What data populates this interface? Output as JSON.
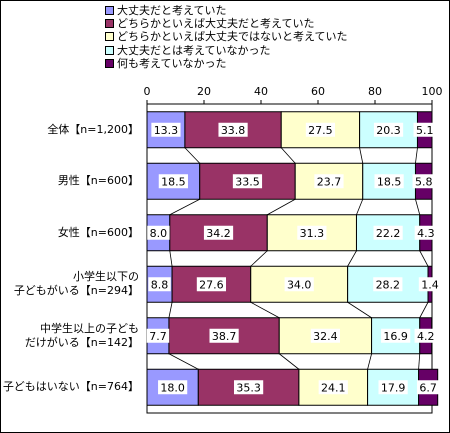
{
  "chart_data": {
    "type": "bar",
    "orientation": "horizontal",
    "stacked": true,
    "percent": true,
    "xlim": [
      0,
      100
    ],
    "x_ticks": [
      "0",
      "20",
      "40",
      "60",
      "80",
      "100"
    ],
    "categories": [
      [
        "全体【n=1,200】"
      ],
      [
        "男性【n=600】"
      ],
      [
        "女性【n=600】"
      ],
      [
        "小学生以下の",
        "子どもがいる【n=294】"
      ],
      [
        "中学生以上の子ども",
        "だけがいる【n=142】"
      ],
      [
        "子どもはいない【n=764】"
      ]
    ],
    "series": [
      {
        "name": "大丈夫だと考えていた",
        "color": "#9999ff",
        "values": [
          13.3,
          18.5,
          8.0,
          8.8,
          7.7,
          18.0
        ]
      },
      {
        "name": "どちらかといえば大丈夫だと考えていた",
        "color": "#993366",
        "values": [
          33.8,
          33.5,
          34.2,
          27.6,
          38.7,
          35.3
        ]
      },
      {
        "name": "どちらかといえば大丈夫ではないと考えていた",
        "color": "#ffffcc",
        "values": [
          27.5,
          23.7,
          31.3,
          34.0,
          32.4,
          24.1
        ]
      },
      {
        "name": "大丈夫だとは考えていなかった",
        "color": "#ccffff",
        "values": [
          20.3,
          18.5,
          22.2,
          28.2,
          16.9,
          17.9
        ]
      },
      {
        "name": "何も考えていなかった",
        "color": "#660066",
        "values": [
          5.1,
          5.8,
          4.3,
          1.4,
          4.2,
          6.7
        ]
      }
    ],
    "legend_position": "top",
    "grid": false,
    "series_lines": true
  }
}
